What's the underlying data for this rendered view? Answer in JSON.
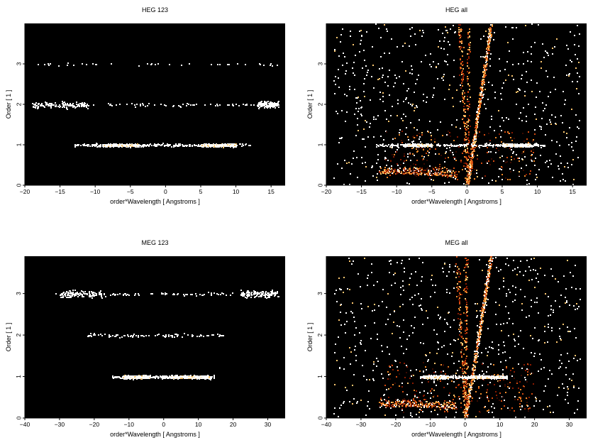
{
  "chart_data": [
    {
      "type": "heatmap",
      "title": "HEG 123",
      "xlabel": "order*Wavelength [ Angstroms ]",
      "ylabel": "Order [ 1 ]",
      "xlim": [
        -20,
        17
      ],
      "ylim": [
        0,
        4
      ],
      "xticks": [
        -20,
        -15,
        -10,
        -5,
        0,
        5,
        10,
        15
      ],
      "xtick_labels": [
        "−20",
        "−15",
        "−10",
        "−5",
        "0",
        "5",
        "10",
        "15"
      ],
      "yticks": [
        0,
        1,
        2,
        3
      ],
      "ytick_labels": [
        "0",
        "1",
        "2",
        "3"
      ],
      "background": "#000000",
      "colormap": [
        "#3a0a00",
        "#8b1a00",
        "#d24a10",
        "#f08a2a",
        "#ffc870",
        "#ffffff"
      ],
      "bands": [
        {
          "order": 1,
          "x_min": -13,
          "x_max": 12,
          "x_bright": [
            [
              -9,
              -4
            ],
            [
              5,
              10
            ]
          ],
          "density": "high"
        },
        {
          "order": 2,
          "x_min": -19,
          "x_max": 16,
          "x_bright": [
            [
              -19,
              -11
            ],
            [
              13,
              16
            ]
          ],
          "density": "low"
        },
        {
          "order": 3,
          "x_min": -19,
          "x_max": 16,
          "x_bright": [],
          "density": "very-low"
        }
      ]
    },
    {
      "type": "heatmap",
      "title": "HEG all",
      "xlabel": "order*Wavelength [ Angstroms ]",
      "ylabel": "Order [ 1 ]",
      "xlim": [
        -20,
        17
      ],
      "ylim": [
        0,
        4
      ],
      "xticks": [
        -20,
        -15,
        -10,
        -5,
        0,
        5,
        10,
        15
      ],
      "xtick_labels": [
        "−20",
        "−15",
        "−10",
        "−5",
        "0",
        "5",
        "10",
        "15"
      ],
      "yticks": [
        0,
        1,
        2,
        3
      ],
      "ytick_labels": [
        "0",
        "1",
        "2",
        "3"
      ],
      "background": "#000000",
      "colormap": [
        "#3a0a00",
        "#8b1a00",
        "#d24a10",
        "#f08a2a",
        "#ffc870",
        "#ffffff"
      ],
      "bands": [
        {
          "order": 1,
          "x_min": -13,
          "x_max": 11,
          "x_bright": [
            [
              -9,
              -5
            ],
            [
              5,
              9
            ]
          ],
          "density": "high"
        }
      ],
      "background_noise": {
        "x_min": -19,
        "x_max": 16,
        "y_min": 0,
        "y_max": 4,
        "density": "medium"
      },
      "zero_order_wedge": {
        "apex_x": 0,
        "apex_y": 0,
        "left_edge_slope": -0.5,
        "right_edge_slope": 0.2,
        "bright_streak_x_per_order": 0.85
      }
    },
    {
      "type": "heatmap",
      "title": "MEG 123",
      "xlabel": "order*Wavelength [ Angstroms ]",
      "ylabel": "Order [ 1 ]",
      "xlim": [
        -40,
        35
      ],
      "ylim": [
        0,
        3.9
      ],
      "xticks": [
        -40,
        -30,
        -20,
        -10,
        0,
        10,
        20,
        30
      ],
      "xtick_labels": [
        "−40",
        "−30",
        "−20",
        "−10",
        "0",
        "10",
        "20",
        "30"
      ],
      "yticks": [
        0,
        1,
        2,
        3
      ],
      "ytick_labels": [
        "0",
        "1",
        "2",
        "3"
      ],
      "background": "#000000",
      "colormap": [
        "#3a0a00",
        "#8b1a00",
        "#d24a10",
        "#f08a2a",
        "#ffc870",
        "#ffffff"
      ],
      "bands": [
        {
          "order": 1,
          "x_min": -15,
          "x_max": 15,
          "x_bright": [
            [
              -12,
              -4
            ],
            [
              2,
              13
            ]
          ],
          "density": "high"
        },
        {
          "order": 2,
          "x_min": -22,
          "x_max": 17,
          "x_bright": [],
          "density": "low"
        },
        {
          "order": 3,
          "x_min": -32,
          "x_max": 33,
          "x_bright": [
            [
              -30,
              -18
            ],
            [
              22,
              33
            ]
          ],
          "density": "low"
        }
      ]
    },
    {
      "type": "heatmap",
      "title": "MEG all",
      "xlabel": "order*Wavelength [ Angstroms ]",
      "ylabel": "Order [ 1 ]",
      "xlim": [
        -40,
        35
      ],
      "ylim": [
        0,
        3.9
      ],
      "xticks": [
        -40,
        -30,
        -20,
        -10,
        0,
        10,
        20,
        30
      ],
      "xtick_labels": [
        "−40",
        "−30",
        "−20",
        "−10",
        "0",
        "10",
        "20",
        "30"
      ],
      "yticks": [
        0,
        1,
        2,
        3
      ],
      "ytick_labels": [
        "0",
        "1",
        "2",
        "3"
      ],
      "background": "#000000",
      "colormap": [
        "#3a0a00",
        "#8b1a00",
        "#d24a10",
        "#f08a2a",
        "#ffc870",
        "#ffffff"
      ],
      "bands": [
        {
          "order": 1,
          "x_min": -13,
          "x_max": 12,
          "x_bright": [
            [
              -12,
              -5
            ],
            [
              2,
              11
            ]
          ],
          "density": "high"
        }
      ],
      "background_noise": {
        "x_min": -38,
        "x_max": 33,
        "y_min": 0,
        "y_max": 3.9,
        "density": "medium"
      },
      "zero_order_wedge": {
        "apex_x": 0,
        "apex_y": 0,
        "left_edge_slope": -1.2,
        "right_edge_slope": 0.3,
        "bright_streak_x_per_order": 1.9
      }
    }
  ]
}
